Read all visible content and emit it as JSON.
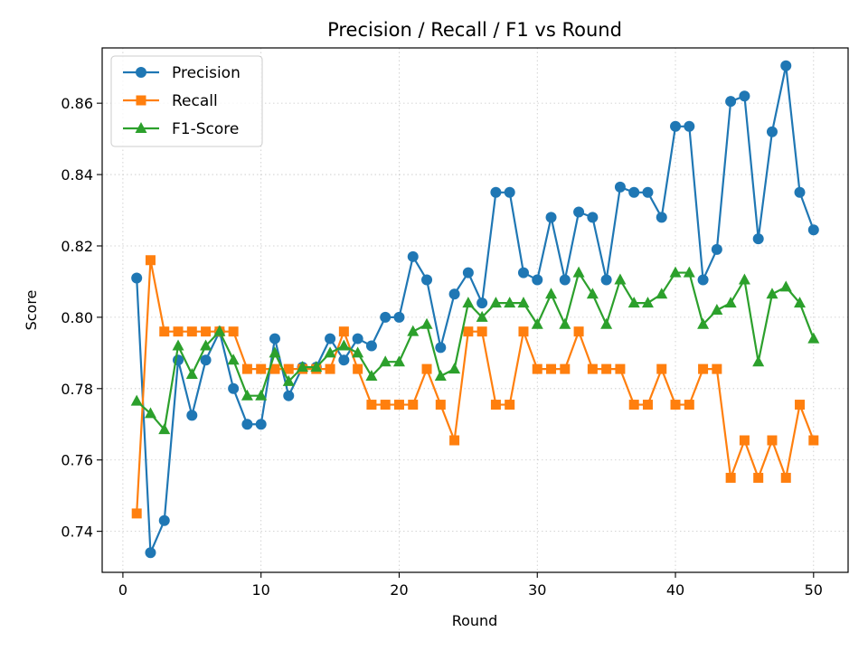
{
  "chart_data": {
    "type": "line",
    "title": "Precision / Recall / F1 vs Round",
    "xlabel": "Round",
    "ylabel": "Score",
    "xlim": [
      -1.5,
      52.5
    ],
    "ylim": [
      0.7285,
      0.8755
    ],
    "x_ticks": [
      0,
      10,
      20,
      30,
      40,
      50
    ],
    "y_ticks": [
      0.74,
      0.76,
      0.78,
      0.8,
      0.82,
      0.84,
      0.86
    ],
    "grid": true,
    "legend_position": "upper-left",
    "x": [
      1,
      2,
      3,
      4,
      5,
      6,
      7,
      8,
      9,
      10,
      11,
      12,
      13,
      14,
      15,
      16,
      17,
      18,
      19,
      20,
      21,
      22,
      23,
      24,
      25,
      26,
      27,
      28,
      29,
      30,
      31,
      32,
      33,
      34,
      35,
      36,
      37,
      38,
      39,
      40,
      41,
      42,
      43,
      44,
      45,
      46,
      47,
      48,
      49,
      50
    ],
    "series": [
      {
        "name": "Precision",
        "color": "#1f77b4",
        "marker": "circle",
        "values": [
          0.811,
          0.734,
          0.743,
          0.788,
          0.7725,
          0.788,
          0.796,
          0.78,
          0.77,
          0.77,
          0.794,
          0.778,
          0.786,
          0.786,
          0.794,
          0.788,
          0.794,
          0.792,
          0.8,
          0.8,
          0.817,
          0.8105,
          0.7915,
          0.8065,
          0.8125,
          0.804,
          0.835,
          0.835,
          0.8125,
          0.8105,
          0.828,
          0.8105,
          0.8295,
          0.828,
          0.8105,
          0.8365,
          0.835,
          0.835,
          0.828,
          0.8535,
          0.8535,
          0.8105,
          0.819,
          0.8605,
          0.862,
          0.822,
          0.852,
          0.8705,
          0.835,
          0.8245
        ]
      },
      {
        "name": "Recall",
        "color": "#ff7f0e",
        "marker": "square",
        "values": [
          0.745,
          0.816,
          0.796,
          0.796,
          0.796,
          0.796,
          0.796,
          0.796,
          0.7855,
          0.7855,
          0.7855,
          0.7855,
          0.7855,
          0.7855,
          0.7855,
          0.796,
          0.7855,
          0.7755,
          0.7755,
          0.7755,
          0.7755,
          0.7855,
          0.7755,
          0.7655,
          0.796,
          0.796,
          0.7755,
          0.7755,
          0.796,
          0.7855,
          0.7855,
          0.7855,
          0.796,
          0.7855,
          0.7855,
          0.7855,
          0.7755,
          0.7755,
          0.7855,
          0.7755,
          0.7755,
          0.7855,
          0.7855,
          0.755,
          0.7655,
          0.755,
          0.7655,
          0.755,
          0.7755,
          0.7655
        ]
      },
      {
        "name": "F1-Score",
        "color": "#2ca02c",
        "marker": "triangle",
        "values": [
          0.7765,
          0.773,
          0.7685,
          0.792,
          0.784,
          0.792,
          0.796,
          0.788,
          0.778,
          0.778,
          0.79,
          0.782,
          0.786,
          0.786,
          0.79,
          0.792,
          0.79,
          0.7835,
          0.7875,
          0.7875,
          0.796,
          0.798,
          0.7835,
          0.7855,
          0.804,
          0.8,
          0.804,
          0.804,
          0.804,
          0.798,
          0.8065,
          0.798,
          0.8125,
          0.8065,
          0.798,
          0.8105,
          0.804,
          0.804,
          0.8065,
          0.8125,
          0.8125,
          0.798,
          0.802,
          0.804,
          0.8105,
          0.7875,
          0.8065,
          0.8085,
          0.804,
          0.794
        ]
      }
    ]
  }
}
